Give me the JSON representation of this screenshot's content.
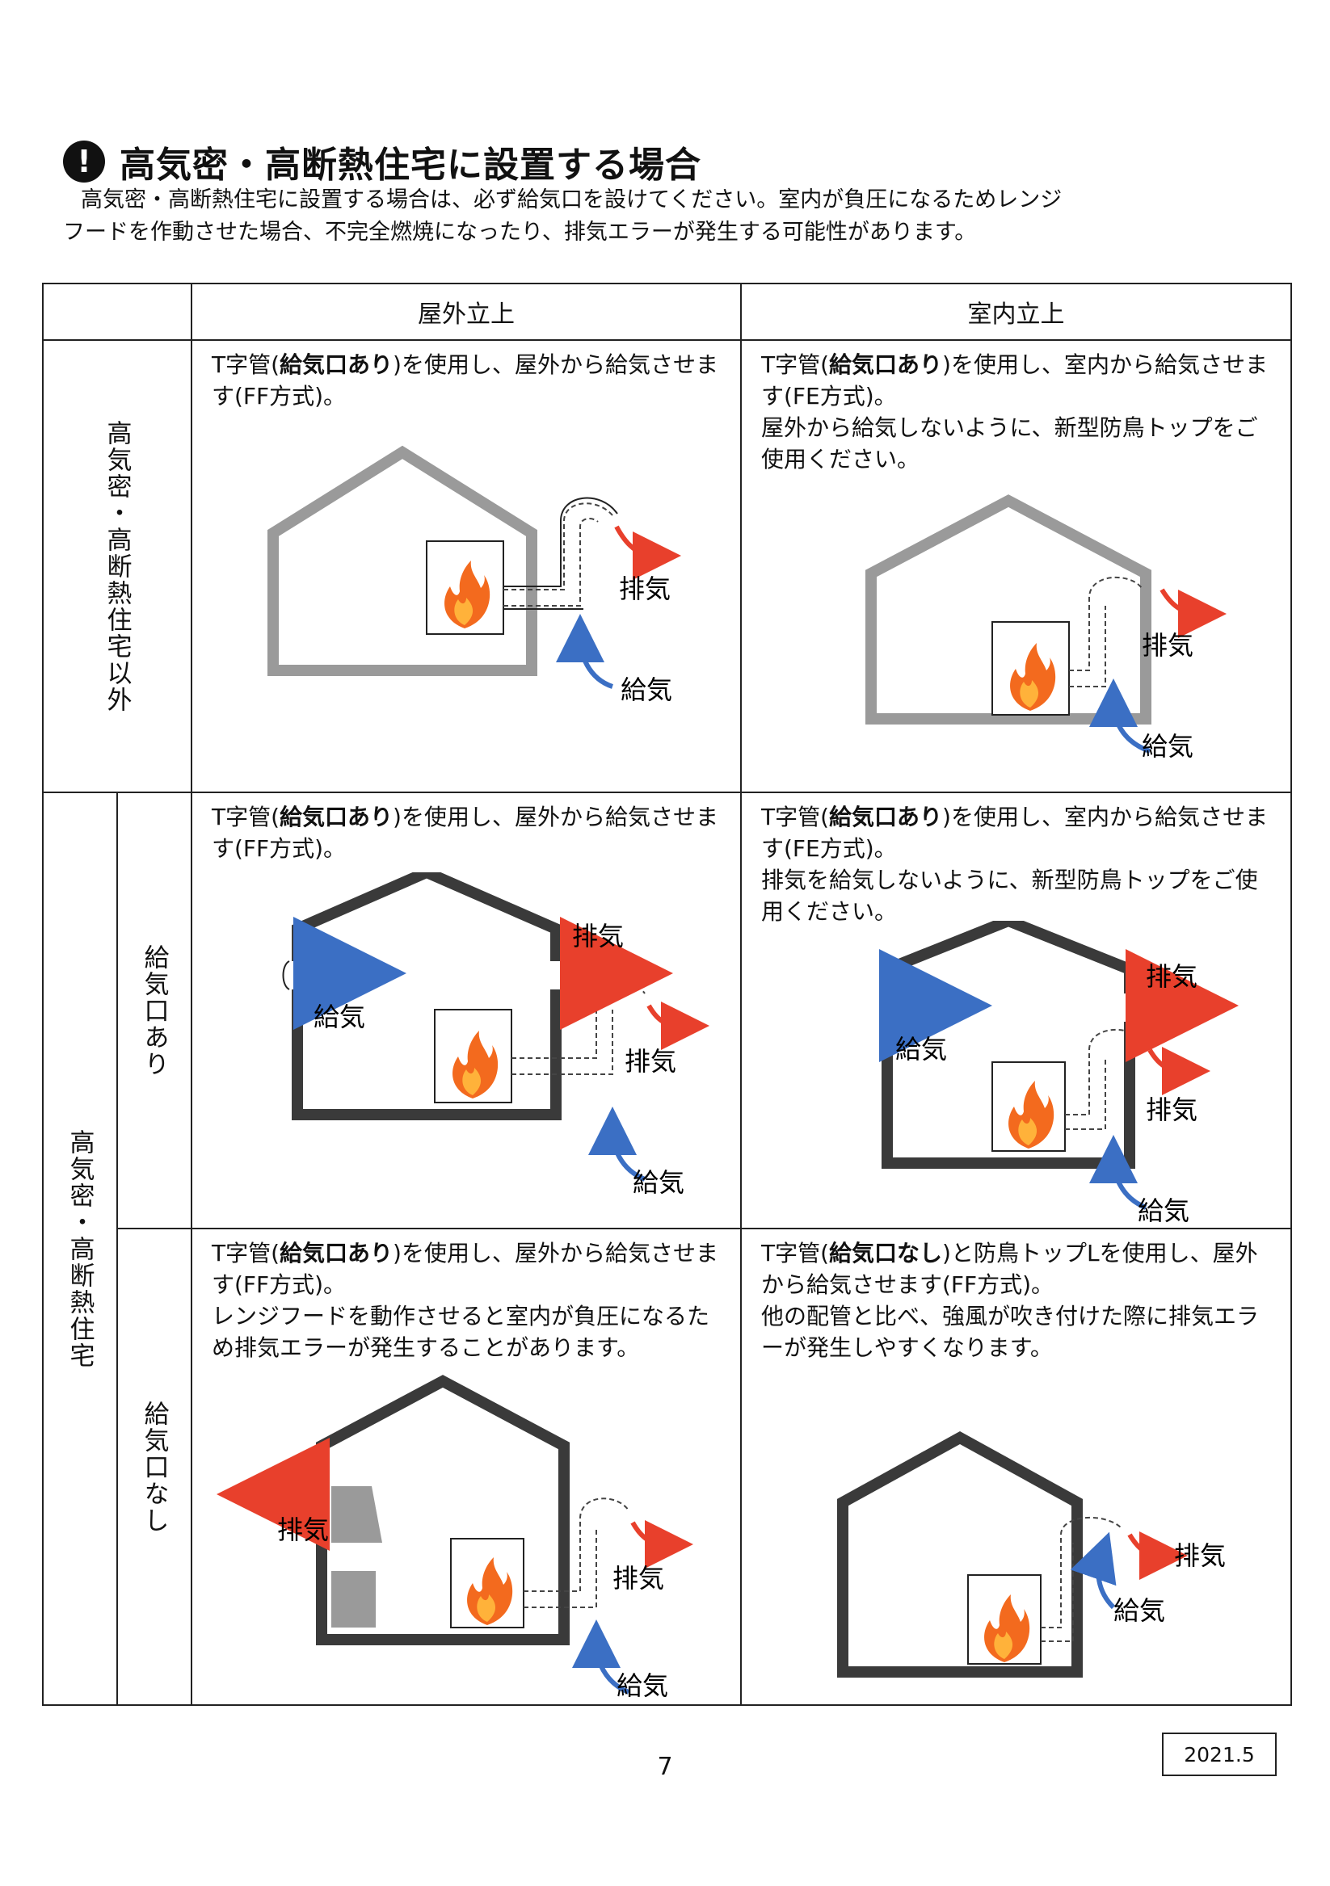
{
  "title": "高気密・高断熱住宅に設置する場合",
  "intro": {
    "line1": "高気密・高断熱住宅に設置する場合は、必ず給気口を設けてください。室内が負圧になるためレンジ",
    "line2": "フードを作動させた場合、不完全燃焼になったり、排気エラーが発生する可能性があります。"
  },
  "table": {
    "col_headers": [
      "屋外立上",
      "室内立上"
    ],
    "row_label_other": "高気密・高断熱住宅以外",
    "row_label_high": "高気密・高断熱住宅",
    "sub_label_with": "給気口あり",
    "sub_label_without": "給気口なし",
    "labels": {
      "exhaust": "排気",
      "intake": "給気"
    },
    "cells": {
      "r1c1": {
        "pre": "T字管(",
        "bold": "給気口あり",
        "post": ")を使用し、屋外から給気させます(FF方式)。"
      },
      "r1c2": {
        "pre": "T字管(",
        "bold": "給気口あり",
        "post": ")を使用し、室内から給気させます(FE方式)。",
        "extra": "屋外から給気しないように、新型防鳥トップをご使用ください。"
      },
      "r2c1": {
        "pre": "T字管(",
        "bold": "給気口あり",
        "post": ")を使用し、屋外から給気させます(FF方式)。"
      },
      "r2c2": {
        "pre": "T字管(",
        "bold": "給気口あり",
        "post": ")を使用し、室内から給気させます(FE方式)。",
        "extra": "排気を給気しないように、新型防鳥トップをご使用ください。"
      },
      "r3c1": {
        "pre": "T字管(",
        "bold": "給気口あり",
        "post": ")を使用し、屋外から給気させます(FF方式)。",
        "extra": "レンジフードを動作させると室内が負圧になるため排気エラーが発生することがあります。"
      },
      "r3c2": {
        "pre": "T字管(",
        "bold": "給気口なし",
        "post": ")と防鳥トップLを使用し、屋外から給気させます(FF方式)。",
        "extra": "他の配管と比べ、強風が吹き付けた際に排気エラーが発生しやすくなります。"
      }
    }
  },
  "page_number": "7",
  "date": "2021.5",
  "colors": {
    "exhaust_arrow": "#e8402c",
    "intake_arrow": "#3b6fc4",
    "house_gray": "#9a9a9a",
    "house_dark": "#3a3a3a",
    "flame": "#f36a1e"
  }
}
